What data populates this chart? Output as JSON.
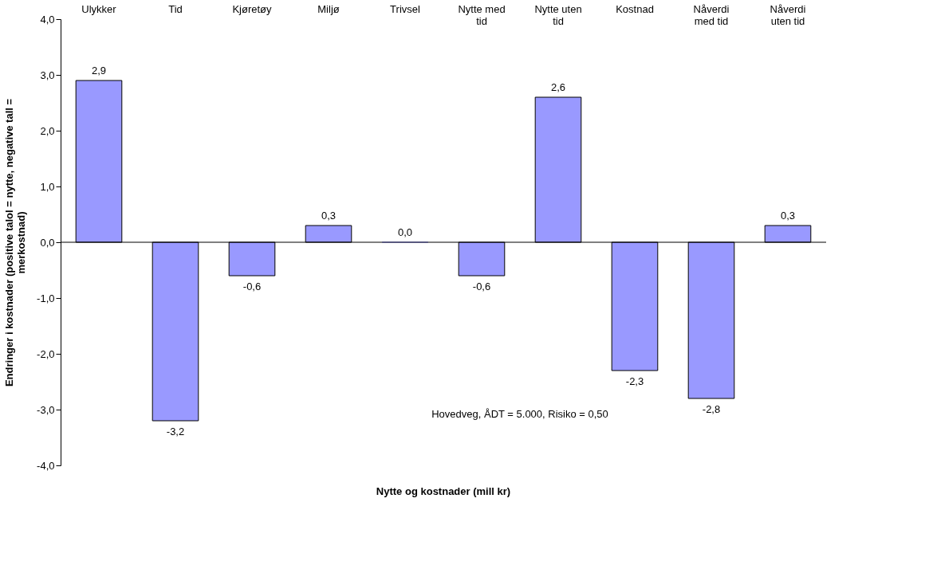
{
  "chart_data": {
    "type": "bar",
    "categories": [
      "Ulykker",
      "Tid",
      "Kjøretøy",
      "Miljø",
      "Trivsel",
      "Nytte med tid",
      "Nytte uten tid",
      "Kostnad",
      "Nåverdi med tid",
      "Nåverdi uten tid"
    ],
    "values": [
      2.9,
      -3.2,
      -0.6,
      0.3,
      0.0,
      -0.6,
      2.6,
      -2.3,
      -2.8,
      0.3
    ],
    "color": "#9999ff",
    "xlabel": "Nytte og kostnader (mill kr)",
    "ylabel": "Endringer i kostnader (positive talol = nytte, negative tall = merkostnad)",
    "ylim": [
      -4,
      4
    ],
    "yticks": [
      {
        "value": -4,
        "label": "-4,0"
      },
      {
        "value": -3,
        "label": "-3,0"
      },
      {
        "value": -2,
        "label": "-2,0"
      },
      {
        "value": -1,
        "label": "-1,0"
      },
      {
        "value": 0,
        "label": "0,0"
      },
      {
        "value": 1,
        "label": "1,0"
      },
      {
        "value": 2,
        "label": "2,0"
      },
      {
        "value": 3,
        "label": "3,0"
      },
      {
        "value": 4,
        "label": "4,0"
      }
    ],
    "annotations": [
      "Hovedveg, ÅDT = 5.000, Risiko = 0,50"
    ],
    "value_labels": [
      "2,9",
      "-3,2",
      "-0,6",
      "0,3",
      "0,0",
      "-0,6",
      "2,6",
      "-2,3",
      "-2,8",
      "0,3"
    ]
  }
}
